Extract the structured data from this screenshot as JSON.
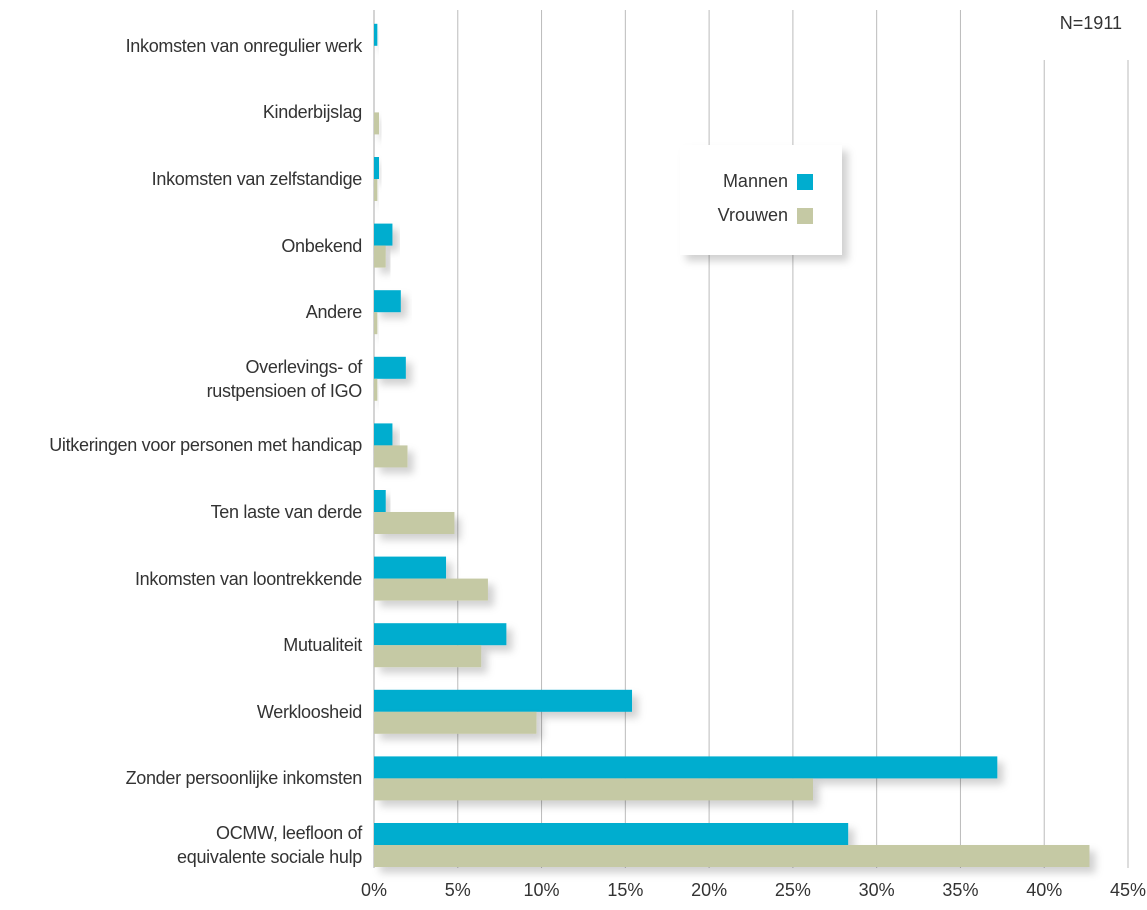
{
  "chart_data": {
    "type": "barh",
    "annotation": "N=1911",
    "categories": [
      "Inkomsten van onregulier werk",
      "Kinderbijslag",
      "Inkomsten van zelfstandige",
      "Onbekend",
      "Andere",
      "Overlevings- of\nrustpensioen of IGO",
      "Uitkeringen voor personen met handicap",
      "Ten laste van derde",
      "Inkomsten van loontrekkende",
      "Mutualiteit",
      "Werkloosheid",
      "Zonder persoonlijke inkomsten",
      "OCMW, leefloon of\nequivalente sociale hulp"
    ],
    "series": [
      {
        "name": "Mannen",
        "color": "#00adcf",
        "values": [
          0.2,
          0,
          0.3,
          1.1,
          1.6,
          1.9,
          1.1,
          0.7,
          4.3,
          7.9,
          15.4,
          37.2,
          28.3
        ]
      },
      {
        "name": "Vrouwen",
        "color": "#c5c9a4",
        "values": [
          0,
          0.3,
          0.2,
          0.7,
          0.2,
          0.2,
          2.0,
          4.8,
          6.8,
          6.4,
          9.7,
          26.2,
          42.7
        ]
      }
    ],
    "xlim": [
      0,
      45
    ],
    "xticks": [
      {
        "value": 0,
        "label": "0%"
      },
      {
        "value": 5,
        "label": "5%"
      },
      {
        "value": 10,
        "label": "10%"
      },
      {
        "value": 15,
        "label": "15%"
      },
      {
        "value": 20,
        "label": "20%"
      },
      {
        "value": 25,
        "label": "25%"
      },
      {
        "value": 30,
        "label": "30%"
      },
      {
        "value": 35,
        "label": "35%"
      },
      {
        "value": 40,
        "label": "40%"
      },
      {
        "value": 45,
        "label": "45%"
      }
    ],
    "grid": true
  }
}
